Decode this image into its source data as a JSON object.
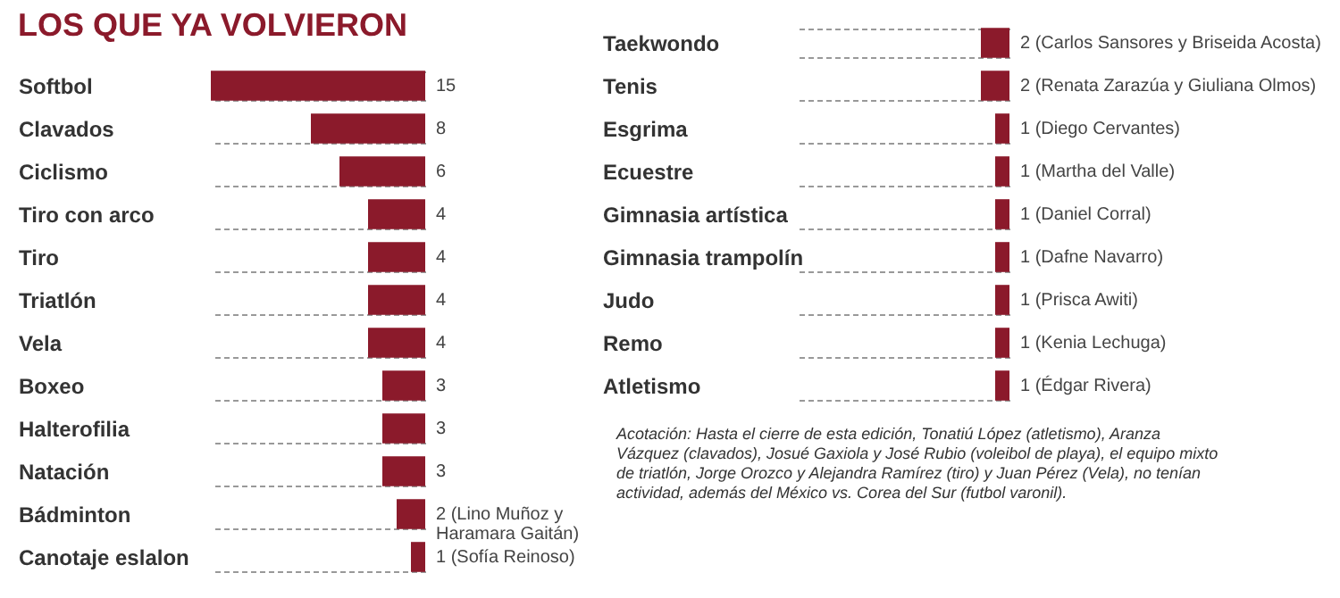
{
  "chart_data": [
    {
      "type": "bar",
      "orientation": "horizontal",
      "title": "LOS QUE YA VOLVIERON",
      "tick_labels": "y",
      "grid": "y",
      "color": "#8b1a2b",
      "categories": [
        "Softbol",
        "Clavados",
        "Ciclismo",
        "Tiro con arco",
        "Tiro",
        "Triatlón",
        "Vela",
        "Boxeo",
        "Halterofilia",
        "Natación",
        "Bádminton",
        "Canotaje eslalon"
      ],
      "values": [
        15,
        8,
        6,
        4,
        4,
        4,
        4,
        3,
        3,
        3,
        2,
        1
      ],
      "value_labels": [
        "15",
        "8",
        "6",
        "4",
        "4",
        "4",
        "4",
        "3",
        "3",
        "3",
        "2 (Lino Muñoz y Haramara Gaitán)",
        "1 (Sofía Reinoso)"
      ]
    },
    {
      "type": "bar",
      "orientation": "horizontal",
      "tick_labels": "y",
      "grid": "y",
      "color": "#8b1a2b",
      "categories": [
        "Taekwondo",
        "Tenis",
        "Esgrima",
        "Ecuestre",
        "Gimnasia artística",
        "Gimnasia trampolín",
        "Judo",
        "Remo",
        "Atletismo"
      ],
      "values": [
        2,
        2,
        1,
        1,
        1,
        1,
        1,
        1,
        1
      ],
      "value_labels": [
        "2 (Carlos Sansores y Briseida Acosta)",
        "2 (Renata Zarazúa y Giuliana Olmos)",
        "1 (Diego Cervantes)",
        "1 (Martha del Valle)",
        "1 (Daniel Corral)",
        "1 (Dafne Navarro)",
        "1 (Prisca Awiti)",
        "1 (Kenia Lechuga)",
        "1 (Édgar Rivera)"
      ],
      "annotations": [
        "Acotación: Hasta el cierre de esta edición, Tonatiú López (atletismo), Aranza Vázquez (clavados), Josué Gaxiola y José Rubio (voleibol de playa), el equipo mixto de triatlón, Jorge Orozco y Alejandra Ramírez (tiro) y Juan Pérez (Vela), no tenían actividad, además del México vs. Corea del Sur (futbol varonil)."
      ]
    }
  ]
}
